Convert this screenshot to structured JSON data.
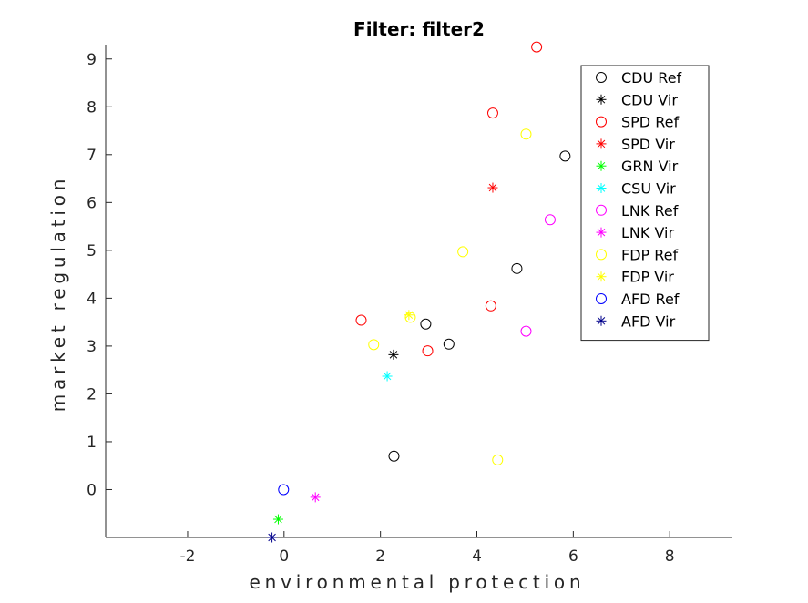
{
  "chart_data": {
    "type": "scatter",
    "title": "Filter: filter2",
    "xlabel": "environmental protection",
    "ylabel": "market regulation",
    "xlim": [
      -3.7,
      9.3
    ],
    "ylim": [
      -1.0,
      9.3
    ],
    "xticks": [
      -2,
      0,
      2,
      4,
      6,
      8
    ],
    "yticks": [
      0,
      1,
      2,
      3,
      4,
      5,
      6,
      7,
      8,
      9
    ],
    "grid": false,
    "legend_position": "top-right",
    "series": [
      {
        "name": "CDU Ref",
        "color": "#000000",
        "marker": "circle",
        "points": [
          [
            5.83,
            6.97
          ],
          [
            4.83,
            4.62
          ],
          [
            2.94,
            3.46
          ],
          [
            3.42,
            3.04
          ],
          [
            2.28,
            0.7
          ]
        ]
      },
      {
        "name": "CDU Vir",
        "color": "#000000",
        "marker": "asterisk",
        "points": [
          [
            2.27,
            2.82
          ]
        ]
      },
      {
        "name": "SPD Ref",
        "color": "#ff0000",
        "marker": "circle",
        "points": [
          [
            5.24,
            9.25
          ],
          [
            4.33,
            7.87
          ],
          [
            4.29,
            3.84
          ],
          [
            1.6,
            3.54
          ],
          [
            2.98,
            2.9
          ]
        ]
      },
      {
        "name": "SPD Vir",
        "color": "#ff0000",
        "marker": "asterisk",
        "points": [
          [
            4.33,
            6.31
          ]
        ]
      },
      {
        "name": "GRN Vir",
        "color": "#00ff00",
        "marker": "asterisk",
        "points": [
          [
            -0.12,
            -0.62
          ]
        ]
      },
      {
        "name": "CSU Vir",
        "color": "#00ffff",
        "marker": "asterisk",
        "points": [
          [
            2.14,
            2.37
          ]
        ]
      },
      {
        "name": "LNK Ref",
        "color": "#ff00ff",
        "marker": "circle",
        "points": [
          [
            5.52,
            5.64
          ],
          [
            5.02,
            3.31
          ]
        ]
      },
      {
        "name": "LNK Vir",
        "color": "#ff00ff",
        "marker": "asterisk",
        "points": [
          [
            0.65,
            -0.16
          ]
        ]
      },
      {
        "name": "FDP Ref",
        "color": "#ffff00",
        "marker": "circle",
        "points": [
          [
            5.02,
            7.43
          ],
          [
            3.71,
            4.97
          ],
          [
            2.62,
            3.6
          ],
          [
            1.86,
            3.03
          ],
          [
            4.43,
            0.62
          ]
        ]
      },
      {
        "name": "FDP Vir",
        "color": "#ffff00",
        "marker": "asterisk",
        "points": [
          [
            2.59,
            3.65
          ]
        ]
      },
      {
        "name": "AFD Ref",
        "color": "#0000ff",
        "marker": "circle",
        "points": [
          [
            -0.01,
            0.0
          ]
        ]
      },
      {
        "name": "AFD Vir",
        "color": "#00008b",
        "marker": "asterisk",
        "points": [
          [
            -0.25,
            -1.0
          ]
        ]
      }
    ]
  }
}
